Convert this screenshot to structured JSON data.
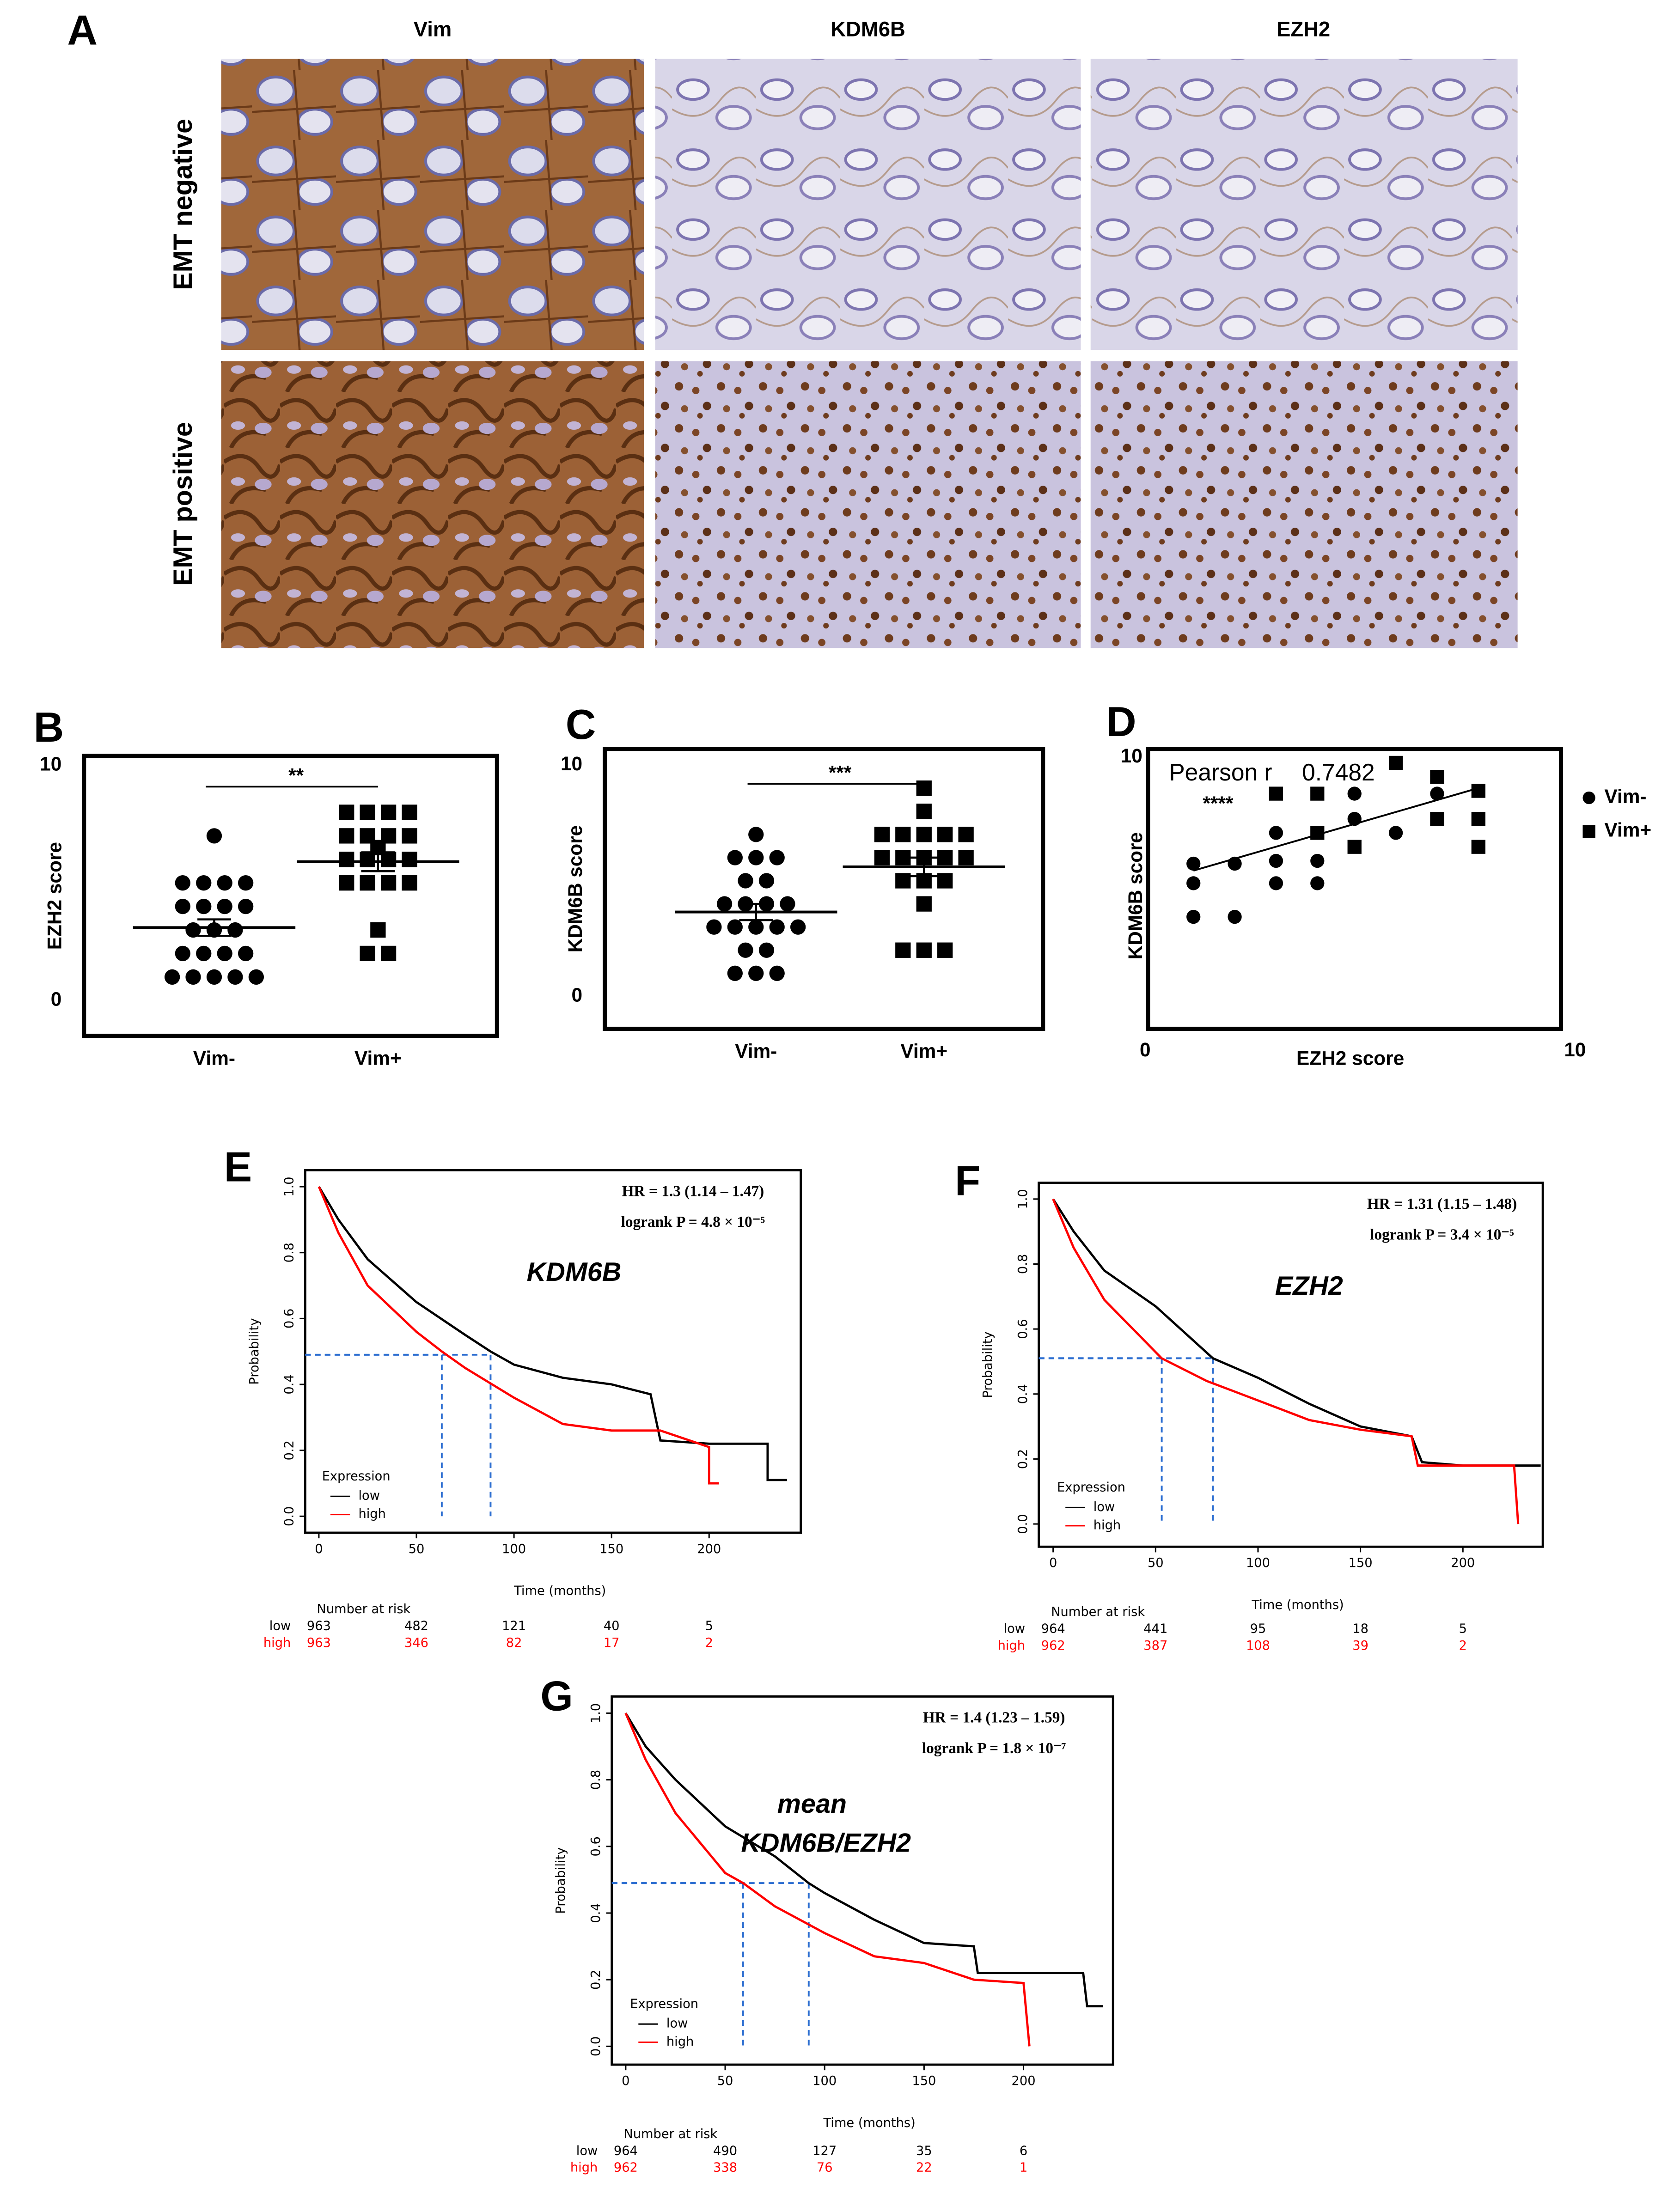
{
  "figure": {
    "panel_label": "A",
    "columns": [
      "Vim",
      "KDM6B",
      "EZH2"
    ],
    "rows": [
      "EMT negative",
      "EMT positive"
    ]
  },
  "chart_data": [
    {
      "type": "dotplot",
      "panel_label": "B",
      "ylabel": "EZH2 score",
      "categories": [
        "Vim-",
        "Vim+"
      ],
      "markers": [
        "circle",
        "square"
      ],
      "color": "#000000",
      "values": [
        [
          7,
          5,
          5,
          5,
          5,
          4,
          4,
          4,
          4,
          3,
          3,
          3,
          2,
          2,
          2,
          2,
          1,
          1,
          1,
          1,
          1
        ],
        [
          8,
          8,
          8,
          8,
          7,
          7,
          7,
          7,
          6.5,
          6,
          6,
          6,
          6,
          5,
          5,
          5,
          5,
          3,
          2,
          2
        ]
      ],
      "means": [
        3.1,
        5.9
      ],
      "errors": [
        0.35,
        0.4
      ],
      "significance": "**",
      "ylim": [
        -1.5,
        10.4
      ],
      "yticks": [
        0,
        10
      ]
    },
    {
      "type": "dotplot",
      "panel_label": "C",
      "ylabel": "KDM6B score",
      "categories": [
        "Vim-",
        "Vim+"
      ],
      "markers": [
        "circle",
        "square"
      ],
      "color": "#000000",
      "values": [
        [
          7,
          6,
          6,
          6,
          5,
          5,
          4,
          4,
          4,
          4,
          3,
          3,
          3,
          3,
          3,
          2,
          2,
          1,
          1,
          1
        ],
        [
          9,
          8,
          7,
          7,
          7,
          7,
          7,
          6,
          6,
          6,
          6,
          6,
          5,
          5,
          5,
          4,
          2,
          2,
          2
        ]
      ],
      "means": [
        3.65,
        5.6
      ],
      "errors": [
        0.35,
        0.4
      ],
      "significance": "***",
      "ylim": [
        -1.4,
        10.7
      ],
      "yticks": [
        0,
        10
      ]
    },
    {
      "type": "scatter",
      "panel_label": "D",
      "xlabel": "EZH2 score",
      "ylabel": "KDM6B score",
      "pearson_label": "Pearson r",
      "pearson_r": 0.7482,
      "significance": "****",
      "series": [
        {
          "name": "Vim-",
          "marker": "circle",
          "color": "#000000",
          "x": [
            1.1,
            1.1,
            1.1,
            2.1,
            2.1,
            3.1,
            3.1,
            3.1,
            4.1,
            4.1,
            5.0,
            5.0,
            6.0,
            7.0
          ],
          "values": [
            5.9,
            5.2,
            4.0,
            5.9,
            4.0,
            7.0,
            6.0,
            5.2,
            6.0,
            5.2,
            8.4,
            7.5,
            7.0,
            8.4
          ]
        },
        {
          "name": "Vim+",
          "marker": "square",
          "color": "#000000",
          "x": [
            3.1,
            4.1,
            4.1,
            5.0,
            6.0,
            7.0,
            7.0,
            8.0,
            8.0,
            8.0
          ],
          "values": [
            8.4,
            8.4,
            7.0,
            6.5,
            9.5,
            9.0,
            7.5,
            8.5,
            7.5,
            6.5
          ]
        }
      ],
      "fit": {
        "x": [
          1.1,
          8.0
        ],
        "y": [
          5.65,
          8.6
        ]
      },
      "xlim": [
        0,
        10
      ],
      "ylim": [
        0,
        10
      ],
      "xticks": [
        0,
        10
      ],
      "yticks": [
        10
      ]
    },
    {
      "type": "line",
      "panel_label": "E",
      "title": "KDM6B",
      "annotations": [
        "HR = 1.3 (1.14 – 1.47)",
        "logrank P = 4.8 × 10⁻⁵"
      ],
      "xlabel": "Time (months)",
      "ylabel": "Probability",
      "legend_title": "Expression",
      "series": [
        {
          "name": "low",
          "color": "#000000",
          "x": [
            0,
            10,
            25,
            50,
            75,
            88,
            100,
            125,
            150,
            170,
            175,
            200,
            230,
            230,
            240
          ],
          "values": [
            1,
            0.9,
            0.78,
            0.65,
            0.55,
            0.5,
            0.46,
            0.42,
            0.4,
            0.37,
            0.23,
            0.22,
            0.22,
            0.11,
            0.11
          ]
        },
        {
          "name": "high",
          "color": "#ff0000",
          "x": [
            0,
            10,
            25,
            50,
            63,
            75,
            100,
            125,
            150,
            175,
            200,
            200,
            205
          ],
          "values": [
            1,
            0.86,
            0.7,
            0.56,
            0.5,
            0.45,
            0.36,
            0.28,
            0.26,
            0.26,
            0.21,
            0.1,
            0.1
          ]
        }
      ],
      "median_lines": [
        {
          "x": 63,
          "y": 0.49
        },
        {
          "x": 88,
          "y": 0.49
        }
      ],
      "median_color": "#2e6fd1",
      "risk_table": {
        "title": "Number at risk",
        "rows": [
          {
            "name": "low",
            "values": [
              963,
              482,
              121,
              40,
              5
            ]
          },
          {
            "name": "high",
            "values": [
              963,
              346,
              82,
              17,
              2
            ]
          }
        ]
      },
      "xlim": [
        -7,
        247
      ],
      "ylim": [
        -0.05,
        1.05
      ],
      "xticks": [
        0,
        50,
        100,
        150,
        200
      ],
      "yticks": [
        {
          "value": 0,
          "label": "0.0"
        },
        0.2,
        0.4,
        0.6,
        0.8,
        {
          "value": 1,
          "label": "1.0"
        }
      ]
    },
    {
      "type": "line",
      "panel_label": "F",
      "title": "EZH2",
      "annotations": [
        "HR = 1.31 (1.15 – 1.48)",
        "logrank P = 3.4 × 10⁻⁵"
      ],
      "xlabel": "Time (months)",
      "ylabel": "Probability",
      "legend_title": "Expression",
      "series": [
        {
          "name": "low",
          "color": "#000000",
          "x": [
            0,
            10,
            25,
            50,
            78,
            100,
            125,
            150,
            175,
            180,
            200,
            238
          ],
          "values": [
            1,
            0.9,
            0.78,
            0.67,
            0.51,
            0.45,
            0.37,
            0.3,
            0.27,
            0.19,
            0.18,
            0.18
          ]
        },
        {
          "name": "high",
          "color": "#ff0000",
          "x": [
            0,
            10,
            25,
            53,
            75,
            100,
            125,
            150,
            175,
            178,
            200,
            225,
            227
          ],
          "values": [
            1,
            0.85,
            0.69,
            0.51,
            0.44,
            0.38,
            0.32,
            0.29,
            0.27,
            0.18,
            0.18,
            0.18,
            0
          ]
        }
      ],
      "median_lines": [
        {
          "x": 53,
          "y": 0.51
        },
        {
          "x": 78,
          "y": 0.51
        }
      ],
      "median_color": "#2e6fd1",
      "risk_table": {
        "title": "Number at risk",
        "rows": [
          {
            "name": "low",
            "values": [
              964,
              441,
              95,
              18,
              5
            ]
          },
          {
            "name": "high",
            "values": [
              962,
              387,
              108,
              39,
              2
            ]
          }
        ]
      },
      "xlim": [
        -7,
        239
      ],
      "ylim": [
        -0.07,
        1.05
      ],
      "xticks": [
        0,
        50,
        100,
        150,
        200
      ],
      "yticks": [
        {
          "value": 0,
          "label": "0.0"
        },
        0.2,
        0.4,
        0.6,
        0.8,
        {
          "value": 1,
          "label": "1.0"
        }
      ]
    },
    {
      "type": "line",
      "panel_label": "G",
      "title": "mean",
      "subtitle": "KDM6B/EZH2",
      "annotations": [
        "HR = 1.4 (1.23 – 1.59)",
        "logrank P = 1.8 × 10⁻⁷"
      ],
      "xlabel": "Time (months)",
      "ylabel": "Probability",
      "legend_title": "Expression",
      "series": [
        {
          "name": "low",
          "color": "#000000",
          "x": [
            0,
            10,
            25,
            50,
            75,
            92,
            100,
            125,
            150,
            175,
            177,
            230,
            232,
            240
          ],
          "values": [
            1,
            0.9,
            0.8,
            0.66,
            0.57,
            0.49,
            0.46,
            0.38,
            0.31,
            0.3,
            0.22,
            0.22,
            0.12,
            0.12
          ]
        },
        {
          "name": "high",
          "color": "#ff0000",
          "x": [
            0,
            10,
            25,
            50,
            59,
            75,
            100,
            125,
            150,
            175,
            200,
            203
          ],
          "values": [
            1,
            0.86,
            0.7,
            0.52,
            0.49,
            0.42,
            0.34,
            0.27,
            0.25,
            0.2,
            0.19,
            0
          ]
        }
      ],
      "median_lines": [
        {
          "x": 59,
          "y": 0.49
        },
        {
          "x": 92,
          "y": 0.49
        }
      ],
      "median_color": "#2e6fd1",
      "risk_table": {
        "title": "Number at risk",
        "rows": [
          {
            "name": "low",
            "values": [
              964,
              490,
              127,
              35,
              6
            ]
          },
          {
            "name": "high",
            "values": [
              962,
              338,
              76,
              22,
              1
            ]
          }
        ]
      },
      "xlim": [
        -7,
        245
      ],
      "ylim": [
        -0.055,
        1.05
      ],
      "xticks": [
        0,
        50,
        100,
        150,
        200
      ],
      "yticks": [
        {
          "value": 0,
          "label": "0.0"
        },
        0.2,
        0.4,
        0.6,
        0.8,
        {
          "value": 1,
          "label": "1.0"
        }
      ]
    }
  ]
}
